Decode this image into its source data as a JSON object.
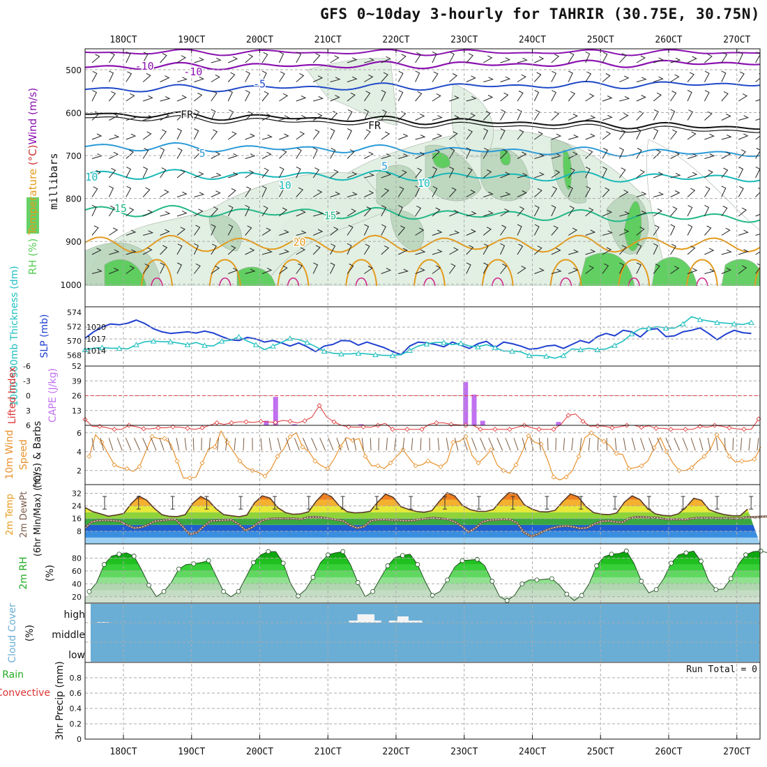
{
  "title": "GFS 0~10day 3-hourly for TAHRIR (30.75E, 30.75N)",
  "colors": {
    "grid": "#aaaaaa",
    "purple": "#8a10b0",
    "blue": "#1f49c8",
    "fr": "#111111",
    "skyblue": "#2a9ad8",
    "teal": "#18b8b8",
    "green": "#22b888",
    "orange": "#e39a1c",
    "rh_light": "#dfeee0",
    "rh_mid": "#b9d6bc",
    "rh_dark": "#86a68a",
    "rh_green": "#55cc55",
    "slp": "#1f3fd0",
    "thick": "#20c0c0",
    "li": "#dd3333",
    "cape": "#c070f0",
    "wind": "#e8902a",
    "cloud": "#6aaed6"
  },
  "chart_data": {
    "type": "meteogram",
    "xticks_top": [
      "18OCT",
      "19OCT",
      "20OCT",
      "21OCT",
      "22OCT",
      "23OCT",
      "24OCT",
      "25OCT",
      "26OCT",
      "27OCT"
    ],
    "xticks_bottom": [
      "18OCT",
      "19OCT",
      "20OCT",
      "21OCT",
      "22OCT",
      "23OCT",
      "24OCT",
      "25OCT",
      "26OCT",
      "27OCT"
    ],
    "sounding": {
      "ylabel": "Wind (m/s)  Temperature (°C)  RH (%)",
      "yunit": "millibars",
      "levels": [
        500,
        600,
        700,
        800,
        900,
        1000
      ],
      "contour_labels": [
        {
          "text": "-10",
          "x": 6.8,
          "p": 492,
          "color": "purple"
        },
        {
          "text": "-10",
          "x": 12.5,
          "p": 505,
          "color": "purple"
        },
        {
          "text": "-5",
          "x": 20.3,
          "p": 533,
          "color": "blue"
        },
        {
          "text": "FR",
          "x": 11.8,
          "p": 605,
          "color": "fr"
        },
        {
          "text": "FR",
          "x": 33.8,
          "p": 630,
          "color": "fr"
        },
        {
          "text": "5",
          "x": 13.6,
          "p": 695,
          "color": "skyblue"
        },
        {
          "text": "5",
          "x": 35.0,
          "p": 725,
          "color": "skyblue"
        },
        {
          "text": "10",
          "x": 0.6,
          "p": 750,
          "color": "teal"
        },
        {
          "text": "10",
          "x": 23.3,
          "p": 770,
          "color": "teal"
        },
        {
          "text": "10",
          "x": 39.6,
          "p": 765,
          "color": "teal"
        },
        {
          "text": "15",
          "x": 4.0,
          "p": 823,
          "color": "green"
        },
        {
          "text": "15",
          "x": 28.6,
          "p": 840,
          "color": "green"
        },
        {
          "text": "20",
          "x": 25.0,
          "p": 902,
          "color": "orange"
        }
      ]
    },
    "slp_thickness": {
      "ylabel_left": "1000-500mb Thickness (dm)",
      "ylabel_right": "SLP (mb)",
      "thickness_ticks": [
        568,
        570,
        572,
        574
      ],
      "slp_ticks": [
        1014,
        1017,
        1020
      ],
      "slp": [
        1017.2,
        1018.8,
        1020.0,
        1020.8,
        1020.6,
        1021.0,
        1021.8,
        1020.9,
        1019.6,
        1018.8,
        1018.4,
        1018.6,
        1018.8,
        1018.5,
        1019.0,
        1018.5,
        1017.6,
        1016.8,
        1016.6,
        1017.4,
        1017.0,
        1016.2,
        1016.6,
        1016.0,
        1015.2,
        1016.0,
        1015.0,
        1013.8,
        1015.2,
        1015.6,
        1016.6,
        1016.5,
        1015.4,
        1016.2,
        1015.5,
        1014.8,
        1013.8,
        1013.0,
        1015.2,
        1016.2,
        1016.0,
        1015.6,
        1015.0,
        1016.2,
        1015.4,
        1014.6,
        1015.8,
        1016.4,
        1014.8,
        1016.2,
        1015.8,
        1015.2,
        1014.4,
        1014.6,
        1015.2,
        1015.4,
        1014.6,
        1015.6,
        1016.6,
        1016.0,
        1017.6,
        1018.4,
        1017.8,
        1019.2,
        1018.8,
        1017.5,
        1019.4,
        1019.6,
        1017.6,
        1017.8,
        1018.8,
        1019.2,
        1019.8,
        1018.4,
        1016.8,
        1018.2,
        1019.2,
        1018.6,
        1018.4
      ],
      "thickness": [
        568.8,
        569.0,
        569.1,
        569.0,
        569.0,
        568.9,
        569.5,
        569.9,
        570.0,
        569.9,
        569.9,
        569.7,
        569.5,
        569.8,
        569.4,
        569.3,
        570.0,
        570.1,
        570.6,
        570.0,
        569.5,
        568.8,
        569.3,
        569.8,
        570.4,
        570.2,
        569.8,
        569.2,
        568.6,
        568.3,
        568.2,
        568.2,
        568.3,
        568.2,
        568.1,
        568.0,
        568.0,
        568.1,
        568.7,
        569.3,
        569.6,
        569.8,
        569.8,
        569.5,
        569.7,
        569.3,
        569.2,
        569.5,
        569.1,
        568.6,
        568.6,
        568.5,
        568.0,
        568.0,
        567.9,
        567.6,
        568.0,
        568.9,
        568.8,
        569.0,
        568.8,
        568.9,
        569.4,
        570.0,
        571.0,
        571.7,
        571.8,
        572.0,
        571.8,
        571.8,
        572.4,
        573.4,
        573.0,
        572.8,
        572.6,
        572.5,
        572.4,
        572.3,
        572.6
      ]
    },
    "li_cape": {
      "ylabel_left": "Lifted Index",
      "ylabel_right": "CAPE (J/kg)",
      "li_ticks": [
        "-6",
        "-3",
        "0",
        "3",
        "6"
      ],
      "cape_ticks": [
        "13",
        "26",
        "39",
        "52"
      ],
      "li": [
        4.8,
        6.2,
        6.2,
        6.5,
        6.8,
        6.8,
        6.0,
        6.3,
        6.7,
        6.7,
        6.5,
        6.5,
        6.3,
        6.4,
        6.6,
        6.8,
        6.5,
        6.0,
        5.5,
        5.8,
        5.5,
        5.3,
        5.3,
        5.4,
        5.2,
        5.3,
        5.4,
        5.0,
        5.2,
        5.5,
        5.1,
        4.3,
        2.0,
        4.3,
        5.3,
        6.0,
        6.3,
        6.4,
        6.3,
        6.4,
        6.0,
        5.6,
        6.8,
        6.8,
        6.8,
        6.8,
        6.8,
        5.8,
        5.5,
        5.5,
        5.8,
        5.9,
        6.0,
        6.0,
        6.8,
        6.8,
        6.8,
        6.8,
        6.8,
        6.4,
        6.0,
        6.5,
        6.8,
        6.8,
        6.8,
        5.8,
        4.0,
        3.7,
        5.2,
        6.2,
        6.1,
        6.2,
        6.5,
        6.3,
        6.0,
        6.0,
        6.4,
        6.1,
        6.6,
        6.6,
        6.8,
        6.8,
        6.8,
        6.8,
        6.2,
        6.4,
        6.0,
        6.2,
        6.5,
        6.7,
        6.8,
        6.8,
        4.7
      ],
      "cape_bars": [
        [
          21.1,
          4
        ],
        [
          22.2,
          25
        ],
        [
          24.4,
          1
        ],
        [
          32.2,
          1
        ],
        [
          44.5,
          38
        ],
        [
          45.5,
          27
        ],
        [
          46.5,
          4
        ],
        [
          55.4,
          3
        ]
      ]
    },
    "wind": {
      "ylabel": "10m Wind Speed (m/s) & Barbs",
      "ticks": [
        2,
        4,
        6
      ],
      "speed": [
        3.5,
        5.8,
        5.0,
        3.8,
        2.6,
        2.3,
        2.2,
        1.9,
        2.4,
        4.0,
        5.6,
        5.4,
        5.4,
        4.8,
        3.0,
        1.2,
        1.2,
        1.3,
        2.8,
        4.3,
        4.5,
        6.2,
        5.0,
        4.0,
        3.0,
        2.3,
        2.0,
        1.8,
        1.4,
        2.2,
        3.5,
        4.3,
        5.6,
        6.0,
        4.5,
        4.0,
        3.0,
        2.5,
        2.2,
        3.2,
        4.5,
        5.5,
        5.2,
        5.4,
        3.5,
        2.5,
        2.5,
        2.2,
        2.8,
        3.5,
        4.2,
        3.3,
        2.5,
        2.6,
        3.0,
        2.7,
        2.4,
        2.9,
        5.0,
        5.1,
        5.6,
        3.6,
        2.8,
        3.4,
        4.2,
        2.6,
        2.0,
        1.7,
        2.6,
        4.0,
        5.7,
        5.0,
        4.8,
        3.2,
        1.3,
        1.0,
        1.3,
        2.0,
        3.5,
        5.5,
        6.0,
        5.5,
        5.1,
        4.6,
        3.8,
        3.7,
        2.2,
        2.3,
        2.5,
        3.0,
        4.4,
        5.5,
        4.0,
        2.8,
        2.0,
        2.0,
        2.3,
        3.0,
        3.5,
        4.3,
        5.8,
        4.8,
        3.5,
        2.9,
        3.0,
        3.0,
        3.2,
        4.5
      ]
    },
    "temp": {
      "ylabel": "2m Temp  2m DewPt  (6hr Min/Max) (°C)",
      "ticks": [
        8,
        16,
        24,
        32
      ],
      "temperature": [
        23.0,
        20.4,
        19.0,
        17.5,
        18.2,
        19.2,
        25.5,
        30.2,
        27.6,
        22.4,
        18.4,
        17.4,
        17.3,
        18.5,
        25.7,
        30.0,
        27.5,
        22.2,
        18.5,
        17.8,
        17.2,
        18.2,
        26.0,
        30.4,
        29.0,
        23.0,
        19.8,
        18.7,
        19.0,
        20.3,
        27.0,
        32.1,
        29.8,
        24.0,
        20.4,
        19.6,
        19.8,
        20.6,
        26.5,
        31.5,
        29.4,
        23.5,
        21.8,
        20.5,
        20.0,
        21.0,
        27.0,
        32.4,
        30.2,
        24.2,
        21.6,
        20.6,
        20.5,
        21.8,
        27.6,
        32.4,
        31.8,
        24.8,
        22.0,
        20.4,
        20.2,
        21.2,
        26.8,
        31.6,
        29.8,
        23.6,
        19.8,
        18.8,
        18.5,
        19.6,
        26.4,
        30.4,
        28.0,
        22.4,
        19.0,
        18.0,
        17.7,
        19.0,
        23.2,
        28.8,
        27.6,
        21.6,
        19.8,
        18.5,
        17.8,
        17.8,
        22.0
      ],
      "dewpoint": [
        10.0,
        14.0,
        14.8,
        15.0,
        14.8,
        14.4,
        12.0,
        10.0,
        10.4,
        12.0,
        14.4,
        14.8,
        15.2,
        15.4,
        11.0,
        6.0,
        7.0,
        11.0,
        14.5,
        14.8,
        15.0,
        15.2,
        12.6,
        8.5,
        10.5,
        14.0,
        15.6,
        16.0,
        16.0,
        16.0,
        16.0,
        15.6,
        16.8,
        17.0,
        16.6,
        16.0,
        15.2,
        14.6,
        11.8,
        10.0,
        11.0,
        14.8,
        15.2,
        15.4,
        15.0,
        15.0,
        14.6,
        14.8,
        15.5,
        16.0,
        16.4,
        16.0,
        15.6,
        14.0,
        11.2,
        7.5,
        10.0,
        14.0,
        15.0,
        15.2,
        15.6,
        15.4,
        13.0,
        7.0,
        4.8,
        6.2,
        8.5,
        10.0,
        11.0,
        11.4,
        10.8,
        9.8,
        10.2,
        12.5,
        14.2,
        14.6,
        14.0,
        13.5,
        16.0,
        17.0,
        17.0,
        16.6,
        16.6,
        15.8,
        15.5,
        15.6,
        15.4,
        16.0,
        16.4,
        16.4,
        16.4,
        16.2,
        16.4,
        16.0,
        16.2,
        17.0,
        17.0,
        17.2,
        17.4
      ]
    },
    "rh": {
      "ylabel": "2m RH (%)",
      "ticks": [
        20,
        40,
        60,
        80
      ],
      "values": [
        28,
        42,
        70,
        83,
        86,
        88,
        83,
        62,
        38,
        20,
        28,
        42,
        63,
        70,
        71,
        73,
        76,
        52,
        28,
        20,
        28,
        50,
        73,
        85,
        90,
        90,
        72,
        40,
        21,
        31,
        50,
        73,
        85,
        88,
        90,
        70,
        42,
        20,
        28,
        48,
        68,
        81,
        84,
        86,
        70,
        44,
        22,
        28,
        46,
        66,
        76,
        77,
        78,
        68,
        44,
        20,
        14,
        22,
        40,
        46,
        46,
        47,
        48,
        38,
        24,
        14,
        22,
        40,
        68,
        82,
        86,
        87,
        91,
        72,
        44,
        26,
        31,
        48,
        72,
        85,
        88,
        91,
        75,
        45,
        31,
        32,
        48,
        70,
        85,
        90,
        91,
        88
      ]
    },
    "cloud": {
      "ylabel": "Cloud Cover (%)",
      "levels": [
        "high",
        "middle",
        "low"
      ],
      "blocks": [
        [
          1.3,
          2.6,
          1
        ],
        [
          30.8,
          34.6,
          3
        ],
        [
          31.8,
          33.8,
          12
        ],
        [
          35.5,
          39.4,
          3
        ],
        [
          36.5,
          37.8,
          9
        ]
      ]
    },
    "precip": {
      "ylabel": "3hr Precip (mm)",
      "legend_total": "Total / Rain",
      "legend_conv": "Convective",
      "ticks": [
        "0",
        "0.2",
        "0.4",
        "0.6",
        "0.8"
      ],
      "run_total": "Run Total = 0"
    }
  }
}
